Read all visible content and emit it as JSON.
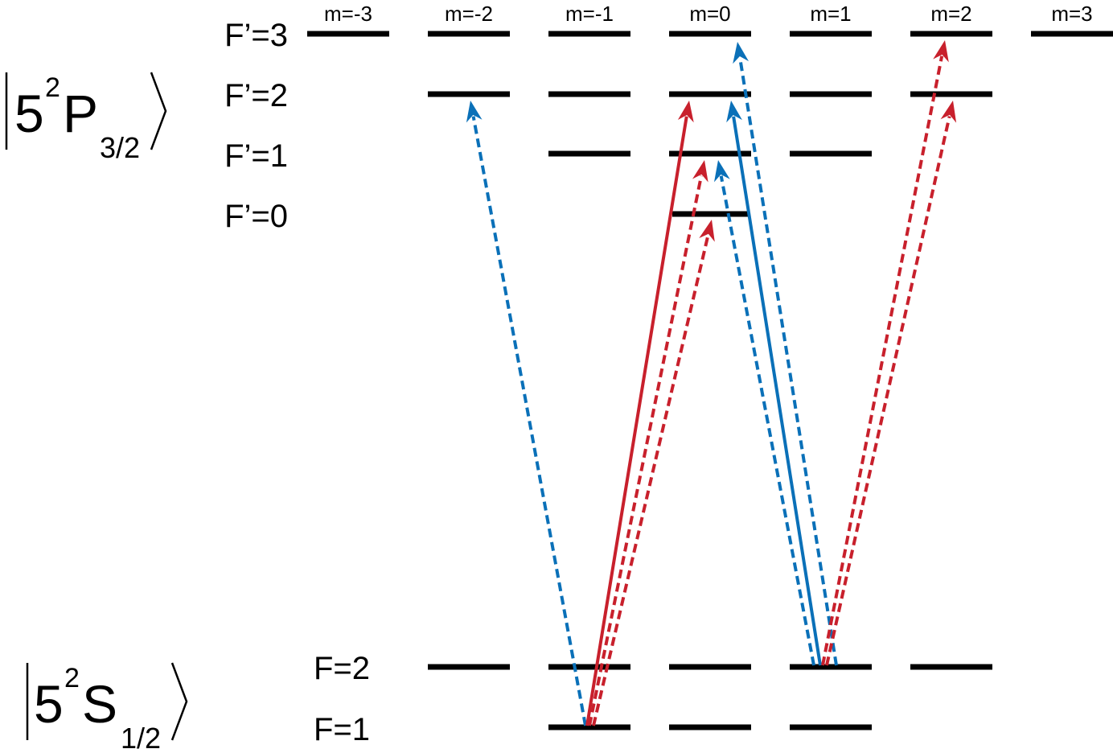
{
  "excited_state": {
    "base": "5",
    "sup": "2",
    "letter": "P",
    "sub": "3/2"
  },
  "ground_state": {
    "base": "5",
    "sup": "2",
    "letter": "S",
    "sub": "1/2"
  },
  "m_labels": [
    "m=-3",
    "m=-2",
    "m=-1",
    "m=0",
    "m=1",
    "m=2",
    "m=3"
  ],
  "excited_levels": [
    {
      "label": "F’=3",
      "m_values": [
        -3,
        -2,
        -1,
        0,
        1,
        2,
        3
      ]
    },
    {
      "label": "F’=2",
      "m_values": [
        -2,
        -1,
        0,
        1,
        2
      ]
    },
    {
      "label": "F’=1",
      "m_values": [
        -1,
        0,
        1
      ]
    },
    {
      "label": "F’=0",
      "m_values": [
        0
      ]
    }
  ],
  "ground_levels": [
    {
      "label": "F=2",
      "m_values": [
        -2,
        -1,
        0,
        1,
        2
      ]
    },
    {
      "label": "F=1",
      "m_values": [
        -1,
        0,
        1
      ]
    }
  ],
  "colors": {
    "red": "#c8202c",
    "blue": "#0a70b8",
    "levels": "#000000"
  },
  "transitions": [
    {
      "from_F": "F=1",
      "from_m": -1,
      "to_F": "F’=2",
      "to_m": -2,
      "color": "blue",
      "style": "dashed"
    },
    {
      "from_F": "F=1",
      "from_m": -1,
      "to_F": "F’=2",
      "to_m": 0,
      "color": "red",
      "style": "solid"
    },
    {
      "from_F": "F=1",
      "from_m": -1,
      "to_F": "F’=1",
      "to_m": 0,
      "color": "red",
      "style": "dashed"
    },
    {
      "from_F": "F=1",
      "from_m": -1,
      "to_F": "F’=0",
      "to_m": 0,
      "color": "red",
      "style": "dashed"
    },
    {
      "from_F": "F=2",
      "from_m": 1,
      "to_F": "F’=2",
      "to_m": 0,
      "color": "blue",
      "style": "solid"
    },
    {
      "from_F": "F=2",
      "from_m": 1,
      "to_F": "F’=3",
      "to_m": 0,
      "color": "blue",
      "style": "dashed"
    },
    {
      "from_F": "F=2",
      "from_m": 1,
      "to_F": "F’=1",
      "to_m": 0,
      "color": "blue",
      "style": "dashed"
    },
    {
      "from_F": "F=2",
      "from_m": 1,
      "to_F": "F’=3",
      "to_m": 2,
      "color": "red",
      "style": "dashed"
    },
    {
      "from_F": "F=2",
      "from_m": 1,
      "to_F": "F’=2",
      "to_m": 2,
      "color": "red",
      "style": "dashed"
    }
  ]
}
